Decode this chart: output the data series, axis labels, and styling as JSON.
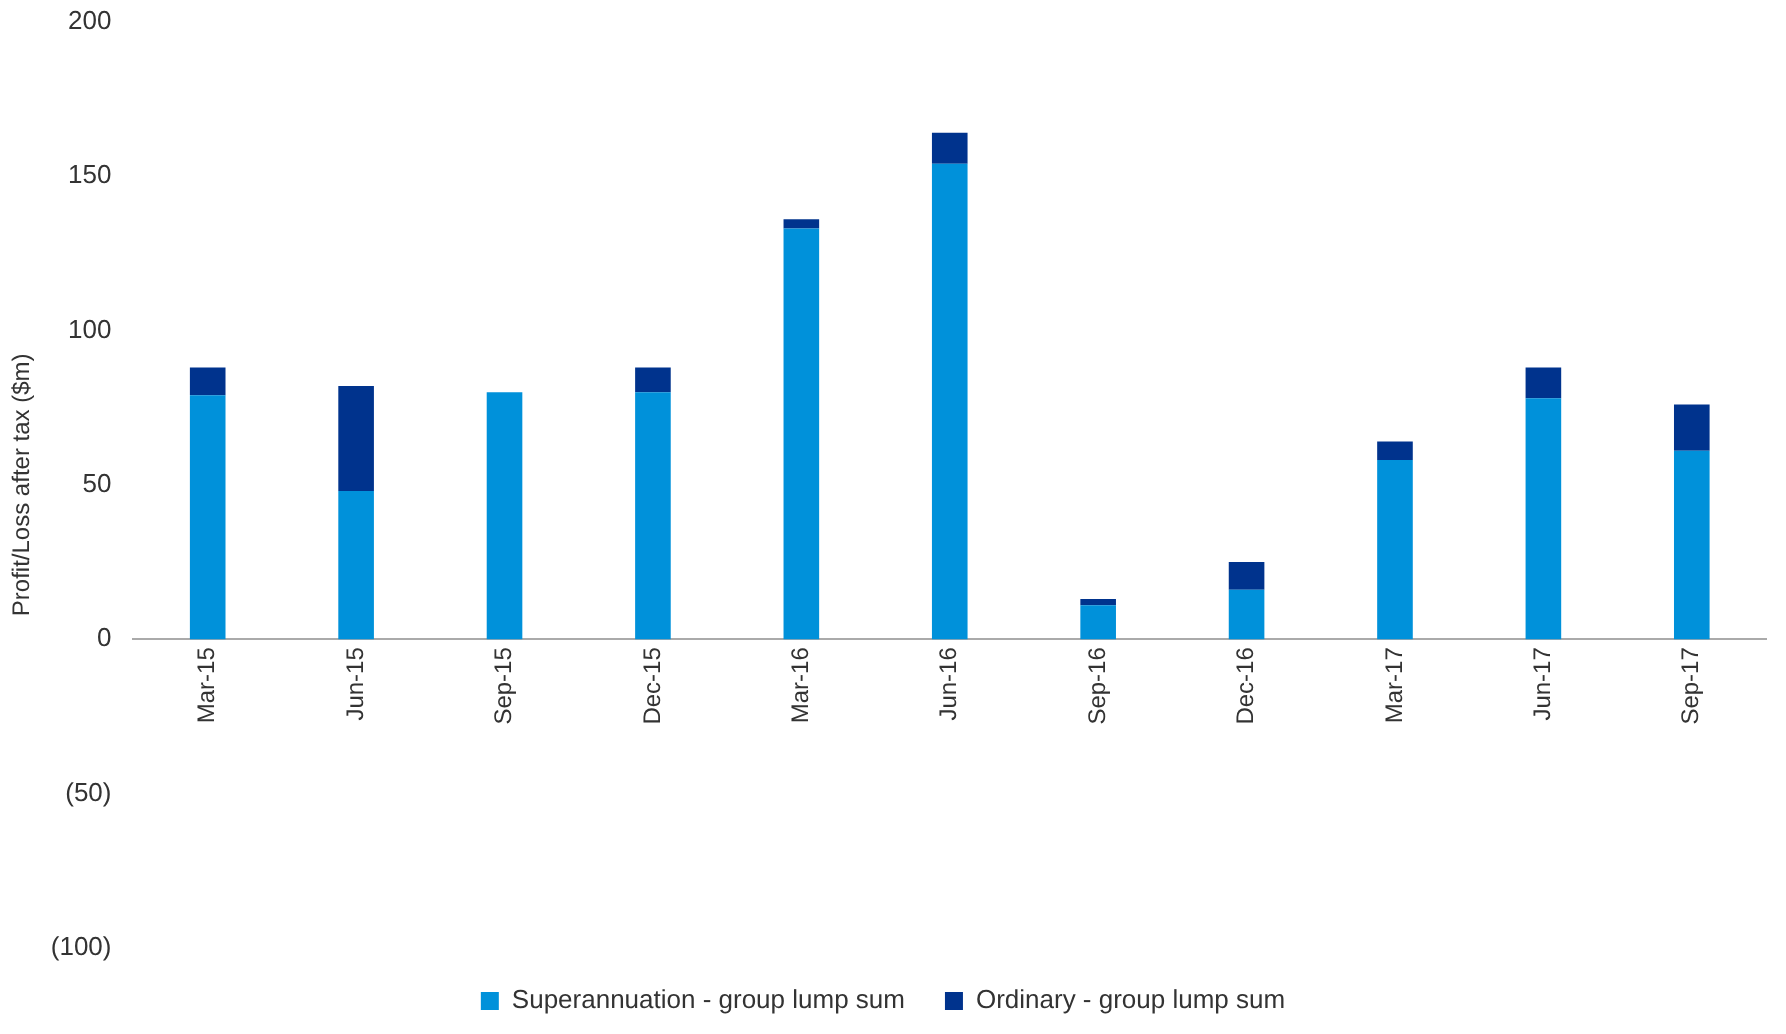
{
  "chart_data": {
    "type": "bar",
    "ylabel": "Profit/Loss after tax ($m)",
    "stacked": true,
    "legend": "bottom",
    "grid": false,
    "categories": [
      "Mar-15",
      "Jun-15",
      "Sep-15",
      "Dec-15",
      "Mar-16",
      "Jun-16",
      "Sep-16",
      "Dec-16",
      "Mar-17",
      "Jun-17",
      "Sep-17"
    ],
    "series": [
      {
        "name": "Superannuation - group lump sum",
        "color": "#0091da",
        "values": [
          79,
          48,
          80,
          80,
          133,
          154,
          11,
          16,
          58,
          78,
          61
        ]
      },
      {
        "name": "Ordinary - group lump sum",
        "color": "#00338d",
        "values": [
          9,
          34,
          0,
          8,
          3,
          10,
          2,
          9,
          6,
          10,
          15
        ]
      }
    ],
    "ylim": [
      -100,
      200
    ],
    "yticks": [
      {
        "value": -100,
        "label": "(100)"
      },
      {
        "value": -50,
        "label": "(50)"
      },
      0,
      50,
      100,
      150,
      200
    ]
  }
}
